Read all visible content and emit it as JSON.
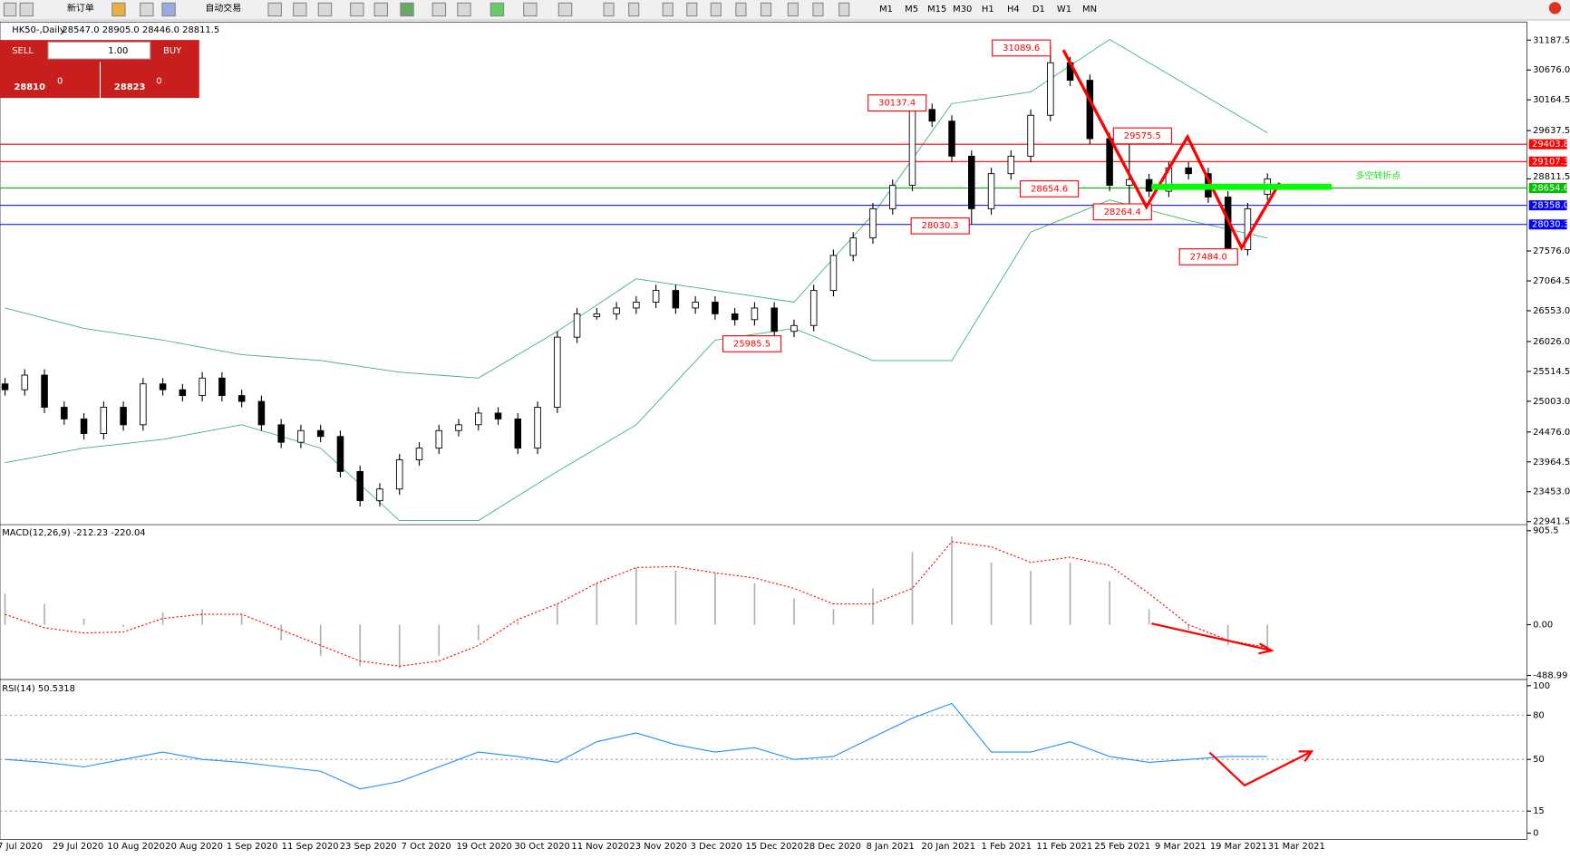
{
  "toolbar": {
    "new_order": "新订单",
    "auto_trading": "自动交易",
    "timeframes": [
      "M1",
      "M5",
      "M15",
      "M30",
      "H1",
      "H4",
      "D1",
      "W1",
      "MN"
    ]
  },
  "trade_panel": {
    "sell": "SELL",
    "buy": "BUY",
    "lot": "1.00",
    "bid_main": "28810",
    "bid_big": "0",
    "ask_main": "28823",
    "ask_big": "0"
  },
  "chart_data": [
    {
      "type": "candlestick",
      "title": "HK50-,Daily",
      "ohlc_text": "28547.0 28905.0 28446.0 28811.5",
      "ylim": [
        22890,
        31498
      ],
      "yticks": [
        31187.5,
        {
          "value": 30676,
          "label": "30676.0"
        },
        30164.5,
        29637.5,
        {
          "value": 27576,
          "label": "27576.0"
        },
        27064.5,
        {
          "value": 26553,
          "label": "26553.0"
        },
        {
          "value": 26026,
          "label": "26026.0"
        },
        25514.5,
        {
          "value": 25003,
          "label": "25003.0"
        },
        {
          "value": 24476,
          "label": "24476.0"
        },
        23964.5,
        {
          "value": 23453,
          "label": "23453.0"
        },
        22941.5
      ],
      "date_labels": [
        "7 Jul 2020",
        "29 Jul 2020",
        "10 Aug 2020",
        "20 Aug 2020",
        "1 Sep 2020",
        "11 Sep 2020",
        "23 Sep 2020",
        "7 Oct 2020",
        "19 Oct 2020",
        "30 Oct 2020",
        "11 Nov 2020",
        "23 Nov 2020",
        "3 Dec 2020",
        "15 Dec 2020",
        "28 Dec 2020",
        "8 Jan 2021",
        "20 Jan 2021",
        "1 Feb 2021",
        "11 Feb 2021",
        "25 Feb 2021",
        "9 Mar 2021",
        "19 Mar 2021",
        "31 Mar 2021"
      ],
      "candles": [
        [
          25300,
          25400,
          25100,
          25200
        ],
        [
          25200,
          25550,
          25100,
          25450
        ],
        [
          25450,
          25550,
          24800,
          24900
        ],
        [
          24900,
          25000,
          24600,
          24700
        ],
        [
          24700,
          24800,
          24350,
          24450
        ],
        [
          24450,
          25000,
          24350,
          24900
        ],
        [
          24900,
          25000,
          24500,
          24600
        ],
        [
          24600,
          25400,
          24500,
          25300
        ],
        [
          25300,
          25400,
          25100,
          25200
        ],
        [
          25200,
          25300,
          25000,
          25100
        ],
        [
          25100,
          25500,
          25000,
          25400
        ],
        [
          25400,
          25500,
          25000,
          25100
        ],
        [
          25100,
          25200,
          24900,
          25000
        ],
        [
          25000,
          25100,
          24500,
          24600
        ],
        [
          24600,
          24700,
          24200,
          24300
        ],
        [
          24300,
          24600,
          24200,
          24500
        ],
        [
          24500,
          24600,
          24300,
          24400
        ],
        [
          24400,
          24500,
          23700,
          23800
        ],
        [
          23800,
          23900,
          23200,
          23300
        ],
        [
          23300,
          23600,
          23200,
          23500
        ],
        [
          23500,
          24100,
          23400,
          24000
        ],
        [
          24000,
          24300,
          23900,
          24200
        ],
        [
          24200,
          24600,
          24100,
          24500
        ],
        [
          24500,
          24700,
          24400,
          24600
        ],
        [
          24600,
          24900,
          24500,
          24800
        ],
        [
          24800,
          24900,
          24600,
          24700
        ],
        [
          24700,
          24800,
          24100,
          24200
        ],
        [
          24200,
          25000,
          24100,
          24900
        ],
        [
          24900,
          26200,
          24800,
          26100
        ],
        [
          26100,
          26600,
          26000,
          26500
        ],
        [
          26450,
          26600,
          26400,
          26500
        ],
        [
          26500,
          26700,
          26400,
          26600
        ],
        [
          26600,
          26800,
          26500,
          26700
        ],
        [
          26700,
          27000,
          26600,
          26900
        ],
        [
          26900,
          27000,
          26500,
          26600
        ],
        [
          26600,
          26800,
          26500,
          26700
        ],
        [
          26700,
          26800,
          26400,
          26500
        ],
        [
          26500,
          26600,
          26300,
          26400
        ],
        [
          26400,
          26700,
          26300,
          26600
        ],
        [
          26600,
          26700,
          25985.5,
          26200
        ],
        [
          26200,
          26400,
          26100,
          26300
        ],
        [
          26300,
          27000,
          26200,
          26900
        ],
        [
          26900,
          27600,
          26800,
          27500
        ],
        [
          27500,
          27900,
          27400,
          27800
        ],
        [
          27800,
          28400,
          27700,
          28300
        ],
        [
          28300,
          28800,
          28200,
          28700
        ],
        [
          28700,
          30137.4,
          28600,
          30000
        ],
        [
          30000,
          30100,
          29700,
          29800
        ],
        [
          29800,
          29900,
          29100,
          29200
        ],
        [
          29200,
          29300,
          28030.3,
          28300
        ],
        [
          28300,
          29000,
          28200,
          28900
        ],
        [
          28900,
          29300,
          28800,
          29200
        ],
        [
          29200,
          30000,
          29100,
          29900
        ],
        [
          29900,
          31089.6,
          29800,
          30800
        ],
        [
          30800,
          30900,
          30400,
          30500
        ],
        [
          30500,
          30600,
          29400,
          29500
        ],
        [
          29500,
          29600,
          28600,
          28700
        ],
        [
          28700,
          29575.5,
          28264.4,
          28800
        ],
        [
          28800,
          28900,
          28500,
          28600
        ],
        [
          28600,
          29100,
          28500,
          29000
        ],
        [
          29000,
          29100,
          28800,
          28900
        ],
        [
          28900,
          29000,
          28400,
          28500
        ],
        [
          28500,
          28600,
          27484.0,
          27600
        ],
        [
          27600,
          28400,
          27500,
          28300
        ],
        [
          28547,
          28905,
          28446,
          28811.5
        ]
      ],
      "bollinger": {
        "color": "#3cb371",
        "upper": [
          26600,
          26250,
          26050,
          25800,
          25700,
          25500,
          25400,
          26200,
          27100,
          26900,
          26700,
          28200,
          30100,
          30300,
          31200,
          30400,
          29600
        ],
        "lower": [
          23950,
          24200,
          24350,
          24600,
          24200,
          22960,
          22960,
          23800,
          24600,
          26050,
          26250,
          25700,
          25700,
          27900,
          28450,
          28100,
          27800
        ]
      },
      "levels": [
        {
          "value": 29403.8,
          "label": "29403.8",
          "color": "#ff0000"
        },
        {
          "value": 29107.3,
          "label": "29107.3",
          "color": "#ff0000"
        },
        {
          "value": 28654.6,
          "label": "28654.6",
          "color": "#00c000"
        },
        {
          "value": 28358.0,
          "label": "28358.0",
          "color": "#0000ff"
        },
        {
          "value": 28030.3,
          "label": "28030.3",
          "color": "#0000ff"
        }
      ],
      "current": {
        "value": 28811.5,
        "label": "28811.5"
      },
      "annotations": [
        "31089.6",
        "30137.4",
        "29575.5",
        "28654.6",
        "28264.4",
        "28030.3",
        "27484.0",
        "25985.5"
      ],
      "note": "多空转折点"
    },
    {
      "type": "macd",
      "title": "MACD(12,26,9) -212.23 -220.04",
      "ylim": [
        -528,
        964
      ],
      "yticks": [
        905.5,
        {
          "value": 0,
          "label": "0.00"
        },
        -488.99
      ],
      "histogram": [
        300,
        200,
        60,
        -20,
        120,
        150,
        100,
        -150,
        -300,
        -400,
        -420,
        -300,
        -150,
        30,
        200,
        400,
        550,
        520,
        500,
        400,
        250,
        150,
        350,
        700,
        850,
        600,
        520,
        600,
        420,
        150,
        -50,
        -200,
        -220
      ],
      "signal": [
        100,
        -30,
        -80,
        -70,
        60,
        100,
        100,
        -50,
        -200,
        -350,
        -400,
        -350,
        -200,
        50,
        200,
        400,
        550,
        560,
        500,
        450,
        350,
        200,
        200,
        350,
        800,
        750,
        600,
        650,
        570,
        300,
        0,
        -150,
        -220
      ]
    },
    {
      "type": "line",
      "title": "RSI(14) 50.5318",
      "ylim": [
        -4.2,
        104.2
      ],
      "yticks": [
        100,
        80,
        50,
        15,
        0
      ],
      "color": "#1e90ff",
      "values": [
        50,
        48,
        45,
        50,
        55,
        50,
        48,
        45,
        42,
        30,
        35,
        45,
        55,
        52,
        48,
        62,
        68,
        60,
        55,
        58,
        50,
        52,
        65,
        78,
        88,
        55,
        55,
        62,
        52,
        48,
        50,
        52,
        52
      ]
    }
  ]
}
